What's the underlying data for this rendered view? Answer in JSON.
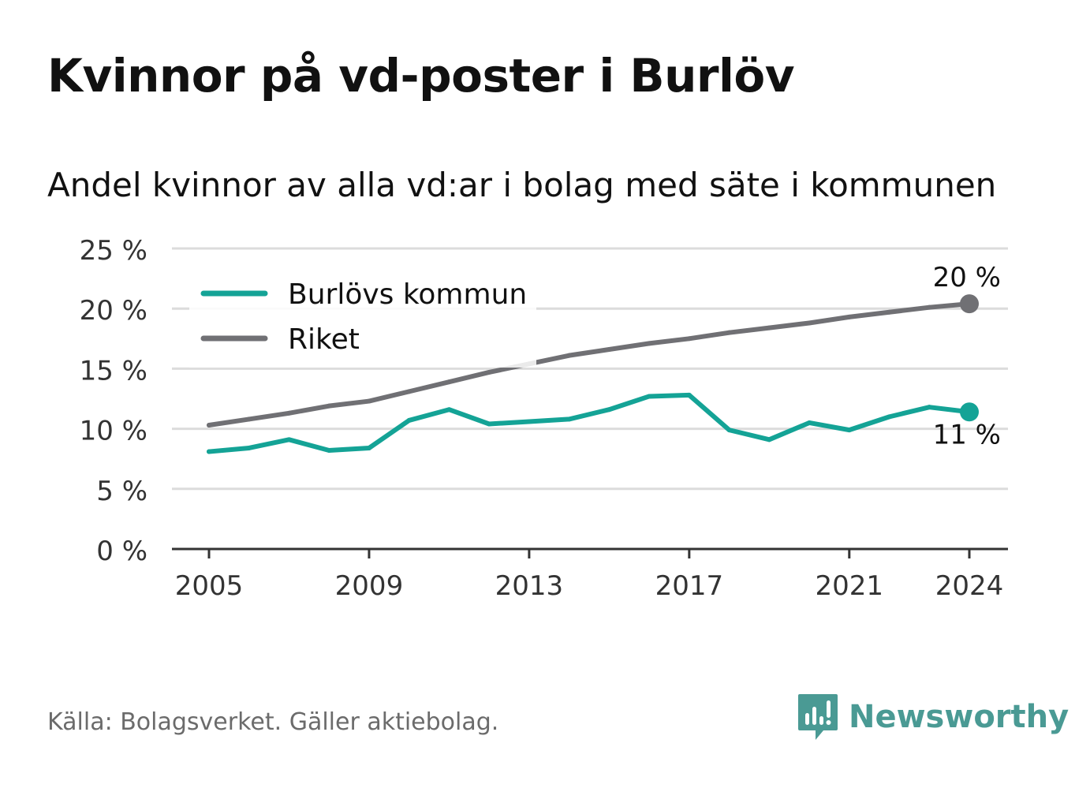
{
  "title": "Kvinnor på vd-poster i Burlöv",
  "subtitle": "Andel kvinnor av alla vd:ar i bolag med säte i kommunen",
  "source": "Källa: Bolagsverket. Gäller aktiebolag.",
  "brand": {
    "name": "Newsworthy",
    "color": "#4a9a94",
    "icon": "newsworthy-logo-icon"
  },
  "chart_data": {
    "type": "line",
    "x": [
      2005,
      2006,
      2007,
      2008,
      2009,
      2010,
      2011,
      2012,
      2013,
      2014,
      2015,
      2016,
      2017,
      2018,
      2019,
      2020,
      2021,
      2022,
      2023,
      2024
    ],
    "series": [
      {
        "name": "Burlövs kommun",
        "color": "#14a396",
        "values": [
          8.1,
          8.4,
          9.1,
          8.2,
          8.4,
          10.7,
          11.6,
          10.4,
          10.6,
          10.8,
          11.6,
          12.7,
          12.8,
          9.9,
          9.1,
          10.5,
          9.9,
          11.0,
          11.8,
          11.4
        ]
      },
      {
        "name": "Riket",
        "color": "#707074",
        "values": [
          10.3,
          10.8,
          11.3,
          11.9,
          12.3,
          13.1,
          13.9,
          14.7,
          15.4,
          16.1,
          16.6,
          17.1,
          17.5,
          18.0,
          18.4,
          18.8,
          19.3,
          19.7,
          20.1,
          20.4
        ]
      }
    ],
    "end_labels": {
      "Burlövs kommun": "11 %",
      "Riket": "20 %"
    },
    "x_ticks": [
      2005,
      2009,
      2013,
      2017,
      2021,
      2024
    ],
    "x_tick_labels": [
      "2005",
      "2009",
      "2013",
      "2017",
      "2021",
      "2024"
    ],
    "y_ticks": [
      0,
      5,
      10,
      15,
      20,
      25
    ],
    "y_tick_labels": [
      "0 %",
      "5 %",
      "10 %",
      "15 %",
      "20 %",
      "25 %"
    ],
    "ylim": [
      0,
      25
    ],
    "xlim": [
      2005,
      2024
    ],
    "grid": true,
    "legend_position": "top-left"
  }
}
